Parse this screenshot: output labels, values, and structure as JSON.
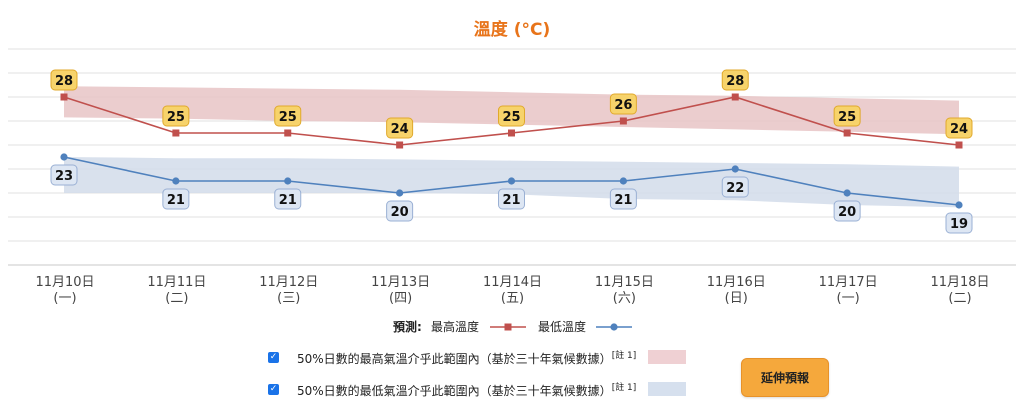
{
  "chart_data": {
    "type": "line",
    "title": "溫度 (°C)",
    "categories": [
      "11月10日",
      "11月11日",
      "11月12日",
      "11月13日",
      "11月14日",
      "11月15日",
      "11月16日",
      "11月17日",
      "11月18日"
    ],
    "weekdays": [
      "(一)",
      "(二)",
      "(三)",
      "(四)",
      "(五)",
      "(六)",
      "(日)",
      "(一)",
      "(二)"
    ],
    "ylim": [
      14,
      32
    ],
    "grid": true,
    "series": [
      {
        "name": "最高溫度",
        "values": [
          28,
          25,
          25,
          24,
          25,
          26,
          28,
          25,
          24
        ],
        "color": "#c0504d",
        "marker": "square",
        "label_position": "above"
      },
      {
        "name": "最低溫度",
        "values": [
          23,
          21,
          21,
          20,
          21,
          21,
          22,
          20,
          19
        ],
        "color": "#4f81bd",
        "marker": "circle",
        "label_position": "below"
      }
    ],
    "bands": [
      {
        "name": "50%日數的最高氣溫介乎此範圍內",
        "lower": [
          26.3,
          26.2,
          26.0,
          25.9,
          25.7,
          25.5,
          25.3,
          25.1,
          24.9
        ],
        "upper": [
          28.9,
          28.8,
          28.7,
          28.6,
          28.4,
          28.2,
          28.1,
          27.9,
          27.7
        ],
        "color": "#e8c4c6"
      },
      {
        "name": "50%日數的最低氣溫介乎此範圍內",
        "lower": [
          20.0,
          20.0,
          20.0,
          20.0,
          19.9,
          19.5,
          19.4,
          19.0,
          18.8
        ],
        "upper": [
          23.0,
          22.9,
          22.9,
          22.8,
          22.7,
          22.6,
          22.5,
          22.4,
          22.2
        ],
        "color": "#d2dcea"
      }
    ],
    "legend": {
      "prefix": "預測:",
      "placement": "bottom"
    }
  },
  "options": {
    "max_band_label": "50%日數的最高氣溫介乎此範圍內（基於三十年氣候數據）",
    "min_band_label": "50%日數的最低氣溫介乎此範圍內（基於三十年氣候數據）",
    "note": "[註 1]",
    "check_mark": "✓"
  },
  "button": {
    "label": "延伸預報"
  },
  "colors": {
    "title": "#e8741a",
    "label_bg": "#f7d36b",
    "label_border": "#e0a92c",
    "min_label_bg": "#dde6f3",
    "min_label_border": "#9ab0d4",
    "button": "#f5a83c"
  }
}
